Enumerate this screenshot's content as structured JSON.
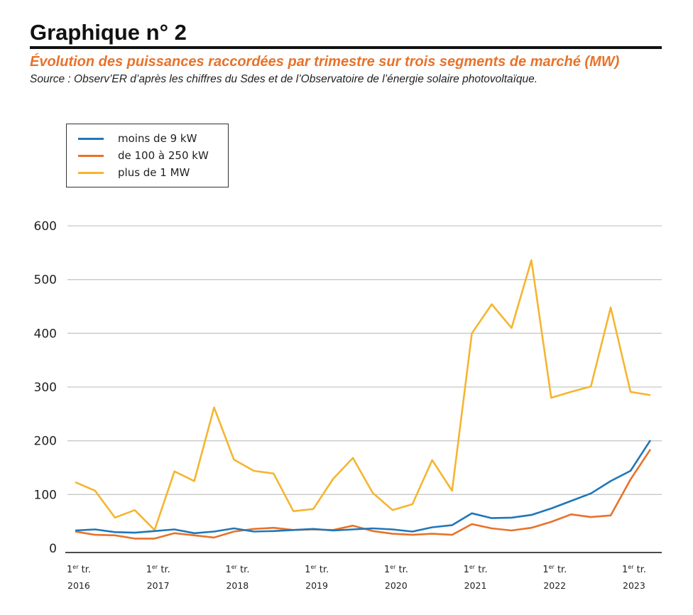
{
  "header": {
    "title": "Graphique n° 2",
    "subtitle": "Évolution des puissances raccordées par trimestre sur trois segments de marché (MW)",
    "source": "Source : Observ’ER d’après les chiffres du Sdes et de l’Observatoire de l’énergie solaire photovoltaïque."
  },
  "chart_data": {
    "type": "line",
    "title": "Évolution des puissances raccordées par trimestre sur trois segments de marché (MW)",
    "xlabel": "",
    "ylabel": "",
    "ylim": [
      0,
      600
    ],
    "yticks": [
      0,
      100,
      200,
      300,
      400,
      500,
      600
    ],
    "grid": true,
    "legend_position": "top-left",
    "x": [
      "2016-T1",
      "2016-T2",
      "2016-T3",
      "2016-T4",
      "2017-T1",
      "2017-T2",
      "2017-T3",
      "2017-T4",
      "2018-T1",
      "2018-T2",
      "2018-T3",
      "2018-T4",
      "2019-T1",
      "2019-T2",
      "2019-T3",
      "2019-T4",
      "2020-T1",
      "2020-T2",
      "2020-T3",
      "2020-T4",
      "2021-T1",
      "2021-T2",
      "2021-T3",
      "2021-T4",
      "2022-T1",
      "2022-T2",
      "2022-T3",
      "2022-T4",
      "2023-T1",
      "2023-T2"
    ],
    "xtick_labels": [
      {
        "line1": "1",
        "sup": "er",
        "line1b": " tr.",
        "year": "2016"
      },
      {
        "line1": "1",
        "sup": "er",
        "line1b": " tr.",
        "year": "2017"
      },
      {
        "line1": "1",
        "sup": "er",
        "line1b": " tr.",
        "year": "2018"
      },
      {
        "line1": "1",
        "sup": "er",
        "line1b": " tr.",
        "year": "2019"
      },
      {
        "line1": "1",
        "sup": "er",
        "line1b": " tr.",
        "year": "2020"
      },
      {
        "line1": "1",
        "sup": "er",
        "line1b": " tr.",
        "year": "2021"
      },
      {
        "line1": "1",
        "sup": "er",
        "line1b": " tr.",
        "year": "2022"
      },
      {
        "line1": "1",
        "sup": "er",
        "line1b": " tr.",
        "year": "2023"
      }
    ],
    "series": [
      {
        "name": "moins de 9 kW",
        "color": "#1f77b8",
        "values": [
          33,
          35,
          30,
          29,
          32,
          35,
          28,
          31,
          37,
          31,
          32,
          34,
          36,
          33,
          35,
          37,
          35,
          31,
          39,
          43,
          65,
          56,
          57,
          62,
          74,
          88,
          102,
          125,
          144,
          201
        ]
      },
      {
        "name": "de 100 à 250 kW",
        "color": "#e8722a",
        "values": [
          31,
          25,
          24,
          18,
          18,
          28,
          24,
          20,
          31,
          36,
          38,
          34,
          35,
          34,
          42,
          32,
          27,
          25,
          27,
          25,
          45,
          37,
          33,
          38,
          49,
          63,
          58,
          61,
          128,
          184
        ]
      },
      {
        "name": "plus de 1 MW",
        "color": "#f5b530",
        "values": [
          123,
          107,
          57,
          71,
          34,
          143,
          125,
          262,
          165,
          144,
          139,
          69,
          73,
          129,
          168,
          103,
          71,
          82,
          164,
          107,
          400,
          454,
          410,
          536,
          280,
          291,
          301,
          448,
          291,
          285
        ]
      }
    ]
  }
}
